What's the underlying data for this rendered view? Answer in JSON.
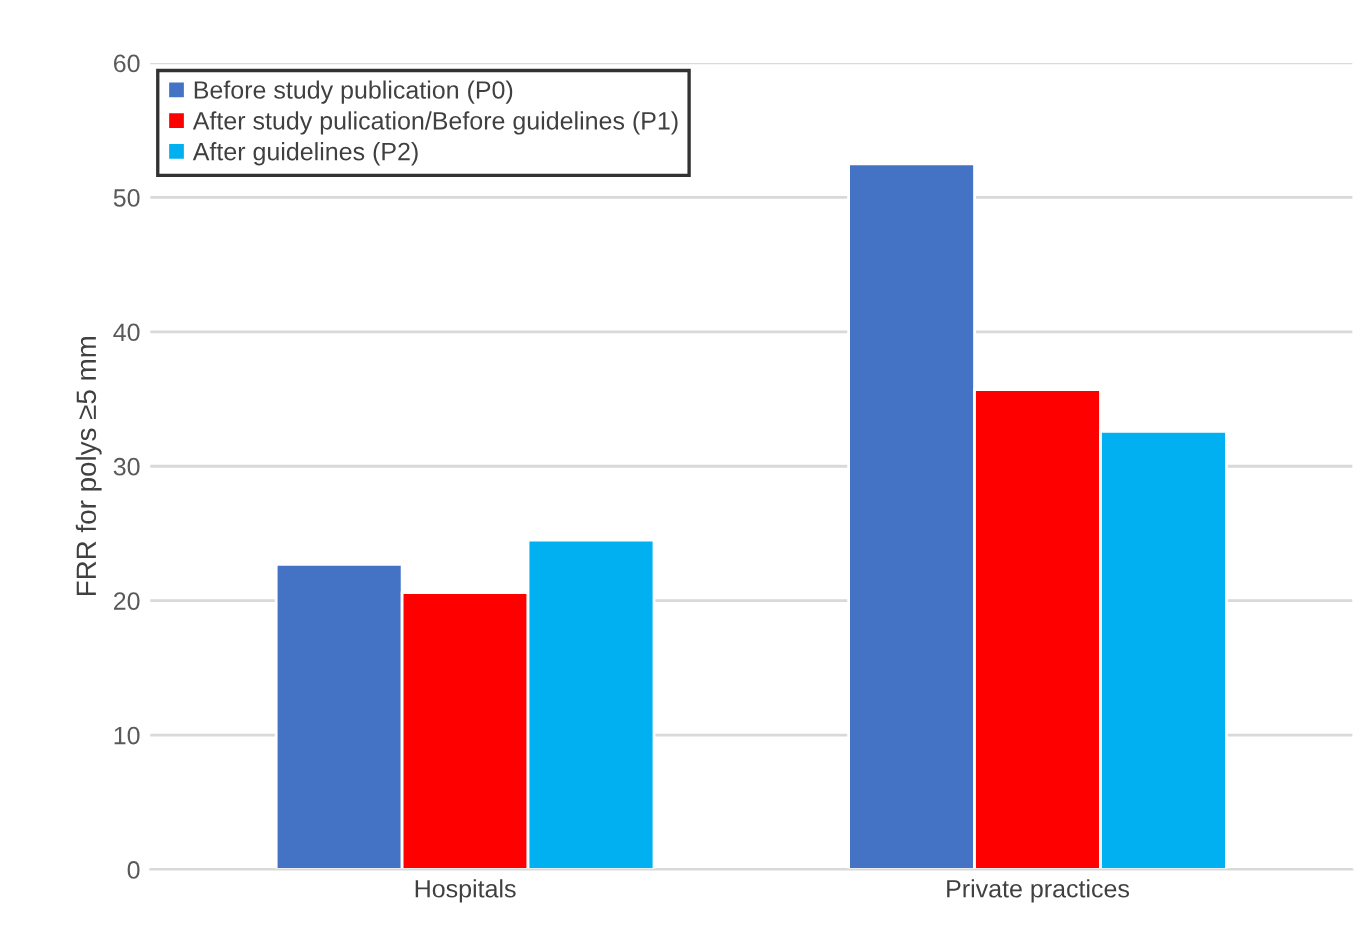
{
  "chart_data": {
    "type": "bar",
    "ylabel": "FRR for polys ≥5 mm",
    "categories": [
      "Hospitals",
      "Private practices"
    ],
    "series": [
      {
        "name": "Before study publication (P0)",
        "color": "#4472c4",
        "values": [
          22.7,
          52.5
        ]
      },
      {
        "name": "After study pulication/Before guidelines (P1)",
        "color": "#ff0000",
        "values": [
          20.6,
          35.7
        ]
      },
      {
        "name": "After guidelines (P2)",
        "color": "#00b0f0",
        "values": [
          24.5,
          32.6
        ]
      }
    ],
    "ylim": [
      0,
      60
    ],
    "yticks": [
      0,
      10,
      20,
      30,
      40,
      50,
      60
    ],
    "grid": "y",
    "legend": "top left"
  }
}
